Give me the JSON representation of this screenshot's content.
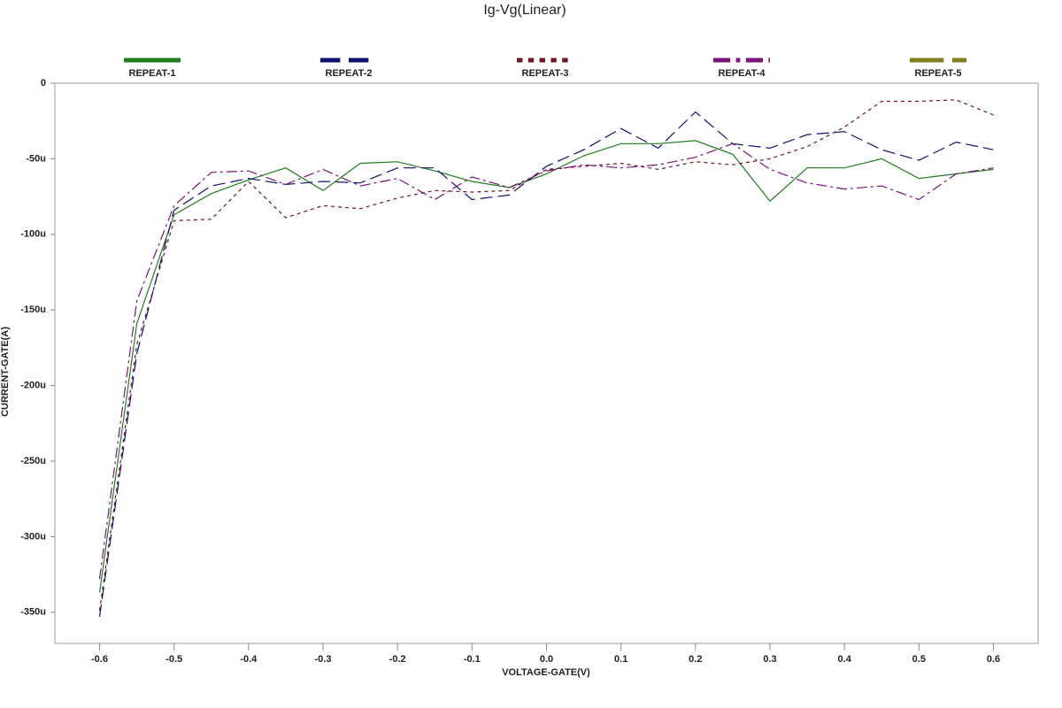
{
  "chart_data": {
    "type": "line",
    "title": "Ig-Vg(Linear)",
    "x_label": "VOLTAGE-GATE(V)",
    "y_label": "CURRENT-GATE(A)",
    "x": [
      -0.6,
      -0.55,
      -0.5,
      -0.45,
      -0.4,
      -0.35,
      -0.3,
      -0.25,
      -0.2,
      -0.15,
      -0.1,
      -0.05,
      0,
      0.05,
      0.1,
      0.15,
      0.2,
      0.25,
      0.3,
      0.35,
      0.4,
      0.45,
      0.5,
      0.55,
      0.6
    ],
    "series": [
      {
        "name": "REPEAT-1",
        "color": "#1e7d1e",
        "style": "solid",
        "values": [
          -337,
          -159,
          -87,
          -73,
          -64,
          -56,
          -71,
          -53,
          -52,
          -58,
          -65,
          -69,
          -60,
          -48,
          -40,
          -40,
          -38,
          -47,
          -78,
          -56,
          -56,
          -50,
          -63,
          -60,
          -57
        ]
      },
      {
        "name": "REPEAT-2",
        "color": "#10106e",
        "style": "long-dash",
        "values": [
          -353,
          -179,
          -84,
          -68,
          -63,
          -67,
          -65,
          -66,
          -56,
          -56,
          -77,
          -74,
          -55,
          -44,
          -30,
          -43,
          -19,
          -40,
          -43,
          -34,
          -32,
          -44,
          -51,
          -39,
          -44
        ]
      },
      {
        "name": "REPEAT-3",
        "color": "#701428",
        "style": "short-dash",
        "values": [
          -349,
          -173,
          -91,
          -90,
          -65,
          -89,
          -81,
          -83,
          -76,
          -71,
          -72,
          -71,
          -57,
          -55,
          -53,
          -57,
          -52,
          -54,
          -50,
          -42,
          -29,
          -12,
          -12,
          -11,
          -21
        ]
      },
      {
        "name": "REPEAT-4",
        "color": "#7a1478",
        "style": "dash-dot",
        "values": [
          -328,
          -144,
          -81,
          -59,
          -58,
          -67,
          -57,
          -68,
          -63,
          -77,
          -62,
          -69,
          -58,
          -54,
          -56,
          -54,
          -49,
          -40,
          -57,
          -66,
          -70,
          -68,
          -77,
          -60,
          -56
        ]
      },
      {
        "name": "REPEAT-5",
        "color": "#7f7f24",
        "style": "long-short",
        "values": [
          null,
          null,
          null,
          null,
          null,
          null,
          null,
          null,
          null,
          null,
          null,
          null,
          null,
          null,
          null,
          null,
          null,
          null,
          null,
          null,
          null,
          null,
          null,
          null,
          null
        ]
      }
    ],
    "xlim": [
      -0.66,
      0.66
    ],
    "xticks": [
      -0.6,
      -0.5,
      -0.4,
      -0.3,
      -0.2,
      -0.1,
      {
        "value": 0,
        "label": "0.0"
      },
      0.1,
      0.2,
      0.3,
      0.4,
      0.5,
      0.6
    ],
    "ylim": [
      -370.6,
      0
    ],
    "yticks": [
      0,
      {
        "value": -50,
        "label": "-50u"
      },
      {
        "value": -100,
        "label": "-100u"
      },
      {
        "value": -150,
        "label": "-150u"
      },
      {
        "value": -200,
        "label": "-200u"
      },
      {
        "value": -250,
        "label": "-250u"
      },
      {
        "value": -300,
        "label": "-300u"
      },
      {
        "value": -350,
        "label": "-350u"
      }
    ],
    "legend": "top"
  }
}
